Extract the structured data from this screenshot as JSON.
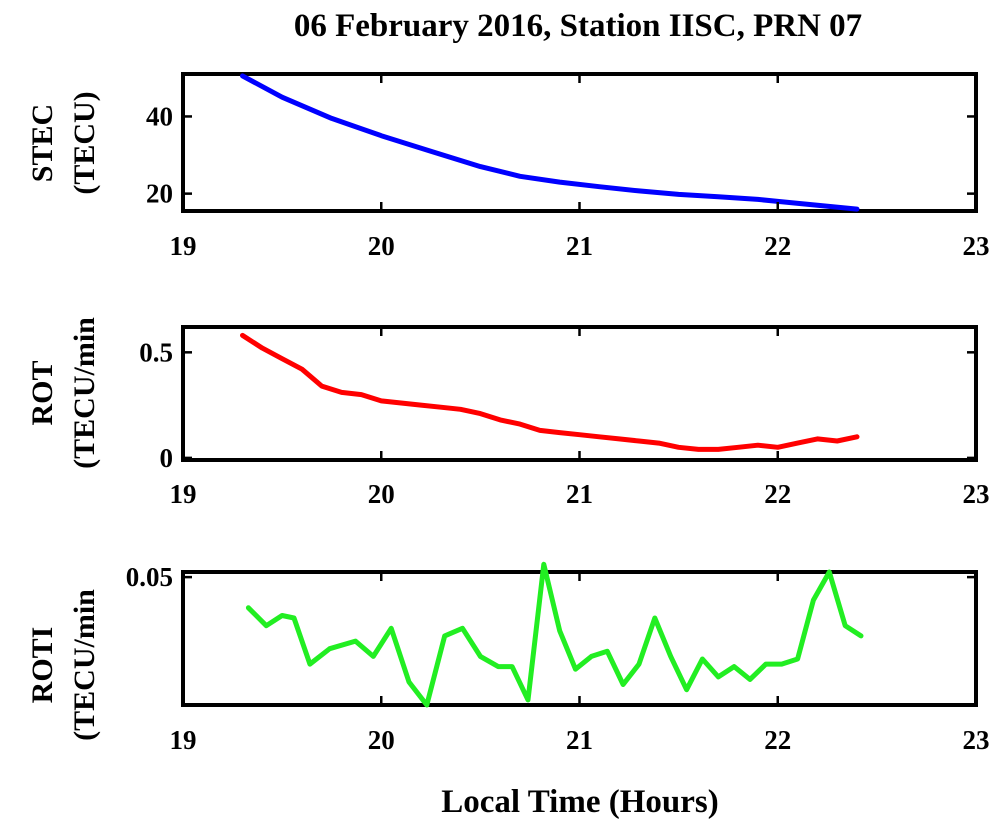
{
  "figure": {
    "title": "06 February 2016, Station IISC, PRN 07",
    "xlabel": "Local Time (Hours)"
  },
  "chart_data": [
    {
      "type": "line",
      "ylabel_line1": "STEC",
      "ylabel_line2": "(TECU)",
      "xlim": [
        19,
        23
      ],
      "ylim": [
        15.5,
        51
      ],
      "xticks": [
        19,
        20,
        21,
        22,
        23
      ],
      "yticks": [
        20,
        40
      ],
      "ytick_labels": [
        "20",
        "40"
      ],
      "color": "#0000ff",
      "series": [
        {
          "x": [
            19.3,
            19.5,
            19.75,
            20.0,
            20.25,
            20.5,
            20.7,
            20.9,
            21.1,
            21.3,
            21.5,
            21.7,
            21.9,
            22.0,
            22.2,
            22.4
          ],
          "y": [
            50.5,
            45.0,
            39.5,
            35.0,
            31.0,
            27.0,
            24.5,
            23.0,
            21.8,
            20.7,
            19.8,
            19.2,
            18.5,
            18.0,
            17.0,
            16.0
          ]
        }
      ]
    },
    {
      "type": "line",
      "ylabel_line1": "ROT",
      "ylabel_line2": "(TECU/min",
      "xlim": [
        19,
        23
      ],
      "ylim": [
        -0.01,
        0.62
      ],
      "xticks": [
        19,
        20,
        21,
        22,
        23
      ],
      "yticks": [
        0,
        0.5
      ],
      "ytick_labels": [
        "0",
        "0.5"
      ],
      "color": "#ff0000",
      "series": [
        {
          "x": [
            19.3,
            19.4,
            19.5,
            19.6,
            19.7,
            19.8,
            19.9,
            20.0,
            20.1,
            20.2,
            20.3,
            20.4,
            20.5,
            20.6,
            20.7,
            20.8,
            20.9,
            21.0,
            21.1,
            21.2,
            21.3,
            21.4,
            21.5,
            21.6,
            21.7,
            21.8,
            21.9,
            22.0,
            22.1,
            22.2,
            22.3,
            22.4
          ],
          "y": [
            0.58,
            0.52,
            0.47,
            0.42,
            0.34,
            0.31,
            0.3,
            0.27,
            0.26,
            0.25,
            0.24,
            0.23,
            0.21,
            0.18,
            0.16,
            0.13,
            0.12,
            0.11,
            0.1,
            0.09,
            0.08,
            0.07,
            0.05,
            0.04,
            0.04,
            0.05,
            0.06,
            0.05,
            0.07,
            0.09,
            0.08,
            0.1
          ]
        }
      ]
    },
    {
      "type": "line",
      "ylabel_line1": "ROTI",
      "ylabel_line2": "(TECU/min",
      "xlim": [
        19,
        23
      ],
      "ylim": [
        0.0,
        0.052
      ],
      "xticks": [
        19,
        20,
        21,
        22,
        23
      ],
      "yticks": [
        0.05
      ],
      "ytick_labels": [
        "0.05"
      ],
      "color": "#22ee22",
      "series": [
        {
          "x": [
            19.33,
            19.42,
            19.5,
            19.56,
            19.64,
            19.74,
            19.87,
            19.96,
            20.05,
            20.14,
            20.23,
            20.32,
            20.41,
            20.5,
            20.59,
            20.66,
            20.74,
            20.82,
            20.9,
            20.98,
            21.06,
            21.14,
            21.22,
            21.3,
            21.38,
            21.46,
            21.54,
            21.62,
            21.7,
            21.78,
            21.86,
            21.94,
            22.02,
            22.1,
            22.18,
            22.26,
            22.34,
            22.42
          ],
          "y": [
            0.038,
            0.031,
            0.035,
            0.034,
            0.016,
            0.022,
            0.025,
            0.019,
            0.03,
            0.009,
            0.0,
            0.027,
            0.03,
            0.019,
            0.015,
            0.015,
            0.002,
            0.055,
            0.029,
            0.014,
            0.019,
            0.021,
            0.008,
            0.016,
            0.034,
            0.019,
            0.006,
            0.018,
            0.011,
            0.015,
            0.01,
            0.016,
            0.016,
            0.018,
            0.041,
            0.052,
            0.031,
            0.027
          ]
        }
      ]
    }
  ]
}
